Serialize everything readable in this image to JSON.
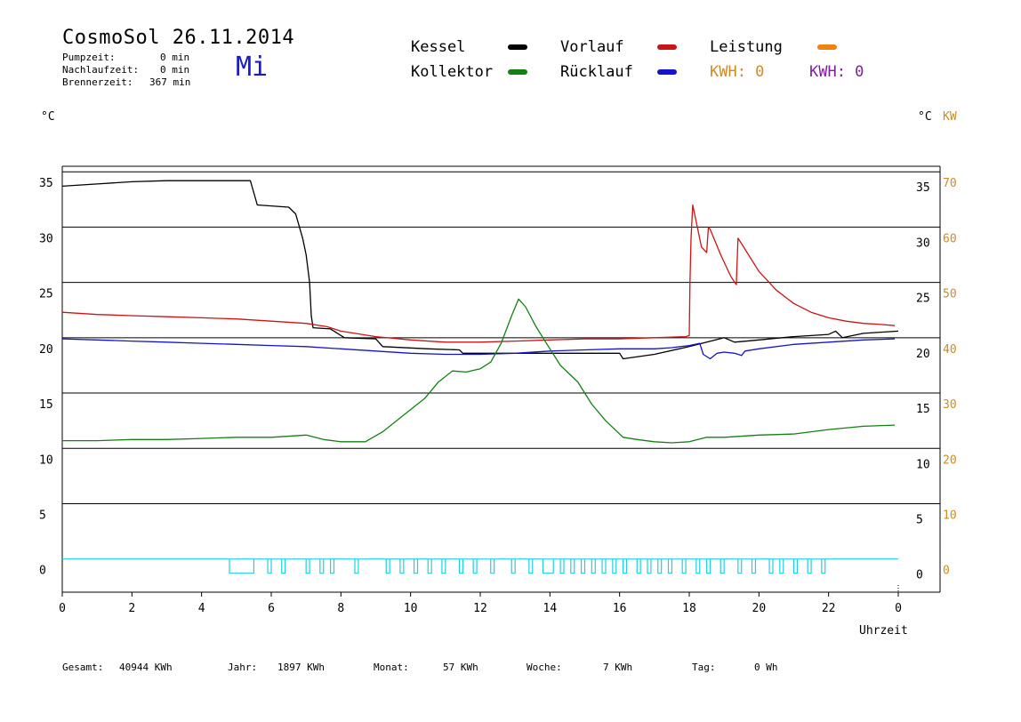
{
  "header": {
    "title": "CosmoSol 26.11.2014",
    "day": "Mi",
    "stats": [
      {
        "label": "Pumpzeit:",
        "value": "0 min"
      },
      {
        "label": "Nachlaufzeit:",
        "value": "0 min"
      },
      {
        "label": "Brennerzeit:",
        "value": "367 min"
      }
    ]
  },
  "legend": {
    "kessel": "Kessel",
    "kollektor": "Kollektor",
    "vorlauf": "Vorlauf",
    "ruecklauf": "Rücklauf",
    "leistung": "Leistung",
    "kwh_orange": "KWH: 0",
    "kwh_purple": "KWH: 0"
  },
  "colors": {
    "kessel": "#000000",
    "kollektor": "#138013",
    "vorlauf": "#cc1414",
    "ruecklauf": "#1414cc",
    "leistung": "#f0820f",
    "kwh_purple": "#8020a0",
    "pump": "#20d0e0",
    "kw_axis": "#d08a20"
  },
  "axes": {
    "left_unit": "°C",
    "right_unit": "°C",
    "kw_unit": "KW",
    "xlabel": "Uhrzeit"
  },
  "footer": [
    {
      "label": "Gesamt:",
      "value": "40944 KWh"
    },
    {
      "label": "Jahr:",
      "value": "1897 KWh"
    },
    {
      "label": "Monat:",
      "value": "57 KWh"
    },
    {
      "label": "Woche:",
      "value": "7 KWh"
    },
    {
      "label": "Tag:",
      "value": "0 Wh"
    }
  ],
  "chart_data": {
    "type": "line",
    "xlim": [
      0,
      24
    ],
    "ylim": [
      -3,
      35.5
    ],
    "x_ticks": [
      "0",
      "2",
      "4",
      "6",
      "8",
      "10",
      "12",
      "14",
      "16",
      "18",
      "20",
      "22",
      "0"
    ],
    "y_ticks": [
      0,
      5,
      10,
      15,
      20,
      25,
      30,
      35
    ],
    "kw_ticks": [
      0,
      10,
      20,
      30,
      40,
      50,
      60,
      70
    ],
    "series": [
      {
        "name": "Kessel",
        "key": "kessel",
        "points": [
          [
            0,
            33.7
          ],
          [
            1,
            33.9
          ],
          [
            2,
            34.1
          ],
          [
            3,
            34.2
          ],
          [
            4,
            34.2
          ],
          [
            5.4,
            34.2
          ],
          [
            5.6,
            32.0
          ],
          [
            6.5,
            31.8
          ],
          [
            6.7,
            31.2
          ],
          [
            6.9,
            29.0
          ],
          [
            7.0,
            27.5
          ],
          [
            7.1,
            25.0
          ],
          [
            7.15,
            22.0
          ],
          [
            7.2,
            20.9
          ],
          [
            7.7,
            20.8
          ],
          [
            8.1,
            20.0
          ],
          [
            9.0,
            19.9
          ],
          [
            9.2,
            19.2
          ],
          [
            10.5,
            19.0
          ],
          [
            11.4,
            18.9
          ],
          [
            11.5,
            18.6
          ],
          [
            13.5,
            18.6
          ],
          [
            14.8,
            18.6
          ],
          [
            16.0,
            18.6
          ],
          [
            16.1,
            18.1
          ],
          [
            17.0,
            18.5
          ],
          [
            18.0,
            19.2
          ],
          [
            19.0,
            20.0
          ],
          [
            19.3,
            19.6
          ],
          [
            20.0,
            19.8
          ],
          [
            21.0,
            20.1
          ],
          [
            22.0,
            20.3
          ],
          [
            22.2,
            20.6
          ],
          [
            22.4,
            20.0
          ],
          [
            23.0,
            20.4
          ],
          [
            24.0,
            20.6
          ]
        ]
      },
      {
        "name": "Vorlauf",
        "key": "vorlauf",
        "points": [
          [
            0,
            22.3
          ],
          [
            1,
            22.1
          ],
          [
            2,
            22.0
          ],
          [
            3,
            21.9
          ],
          [
            4,
            21.8
          ],
          [
            5,
            21.7
          ],
          [
            6,
            21.5
          ],
          [
            7,
            21.3
          ],
          [
            7.6,
            21.0
          ],
          [
            8,
            20.6
          ],
          [
            9,
            20.1
          ],
          [
            10,
            19.8
          ],
          [
            11,
            19.6
          ],
          [
            12,
            19.6
          ],
          [
            13,
            19.7
          ],
          [
            14,
            19.8
          ],
          [
            15,
            19.9
          ],
          [
            16,
            19.9
          ],
          [
            17,
            20.0
          ],
          [
            17.9,
            20.1
          ],
          [
            18.0,
            20.2
          ],
          [
            18.02,
            25.0
          ],
          [
            18.05,
            29.0
          ],
          [
            18.1,
            32.0
          ],
          [
            18.35,
            28.2
          ],
          [
            18.5,
            27.7
          ],
          [
            18.55,
            30.0
          ],
          [
            18.6,
            29.8
          ],
          [
            18.9,
            27.5
          ],
          [
            19.2,
            25.5
          ],
          [
            19.35,
            24.8
          ],
          [
            19.4,
            29.0
          ],
          [
            19.5,
            28.5
          ],
          [
            20.0,
            26.0
          ],
          [
            20.5,
            24.3
          ],
          [
            21.0,
            23.1
          ],
          [
            21.5,
            22.3
          ],
          [
            22.0,
            21.8
          ],
          [
            22.5,
            21.5
          ],
          [
            23,
            21.3
          ],
          [
            23.5,
            21.2
          ],
          [
            23.9,
            21.1
          ]
        ]
      },
      {
        "name": "Rücklauf",
        "key": "ruecklauf",
        "points": [
          [
            0,
            19.9
          ],
          [
            1,
            19.8
          ],
          [
            2,
            19.7
          ],
          [
            3,
            19.6
          ],
          [
            4,
            19.5
          ],
          [
            5,
            19.4
          ],
          [
            6,
            19.3
          ],
          [
            7,
            19.2
          ],
          [
            8,
            19.0
          ],
          [
            9,
            18.8
          ],
          [
            10,
            18.6
          ],
          [
            11,
            18.5
          ],
          [
            12,
            18.5
          ],
          [
            13,
            18.6
          ],
          [
            14,
            18.8
          ],
          [
            15,
            18.9
          ],
          [
            16,
            19.0
          ],
          [
            17,
            19.0
          ],
          [
            17.5,
            19.1
          ],
          [
            18.0,
            19.3
          ],
          [
            18.3,
            19.5
          ],
          [
            18.4,
            18.5
          ],
          [
            18.6,
            18.1
          ],
          [
            18.8,
            18.6
          ],
          [
            19.0,
            18.7
          ],
          [
            19.3,
            18.6
          ],
          [
            19.5,
            18.4
          ],
          [
            19.6,
            18.8
          ],
          [
            20.0,
            19.0
          ],
          [
            21.0,
            19.4
          ],
          [
            22.0,
            19.6
          ],
          [
            23.0,
            19.8
          ],
          [
            23.9,
            19.9
          ]
        ]
      },
      {
        "name": "Kollektor",
        "key": "kollektor",
        "points": [
          [
            0,
            10.7
          ],
          [
            1,
            10.7
          ],
          [
            2,
            10.8
          ],
          [
            3,
            10.8
          ],
          [
            4,
            10.9
          ],
          [
            5,
            11.0
          ],
          [
            6,
            11.0
          ],
          [
            7,
            11.2
          ],
          [
            7.5,
            10.8
          ],
          [
            8,
            10.6
          ],
          [
            8.7,
            10.6
          ],
          [
            9.2,
            11.5
          ],
          [
            9.8,
            13.0
          ],
          [
            10.4,
            14.5
          ],
          [
            10.8,
            16.0
          ],
          [
            11.2,
            17.0
          ],
          [
            11.6,
            16.9
          ],
          [
            12.0,
            17.2
          ],
          [
            12.3,
            17.8
          ],
          [
            12.6,
            19.5
          ],
          [
            12.9,
            22.0
          ],
          [
            13.1,
            23.5
          ],
          [
            13.3,
            22.8
          ],
          [
            13.6,
            21.0
          ],
          [
            14.0,
            19.0
          ],
          [
            14.3,
            17.5
          ],
          [
            14.8,
            16.0
          ],
          [
            15.2,
            14.0
          ],
          [
            15.6,
            12.5
          ],
          [
            16.1,
            11.0
          ],
          [
            16.5,
            10.8
          ],
          [
            17.0,
            10.6
          ],
          [
            17.5,
            10.5
          ],
          [
            18.0,
            10.6
          ],
          [
            18.5,
            11.0
          ],
          [
            19.0,
            11.0
          ],
          [
            20.0,
            11.2
          ],
          [
            21.0,
            11.3
          ],
          [
            22.0,
            11.7
          ],
          [
            23.0,
            12.0
          ],
          [
            23.9,
            12.1
          ]
        ]
      }
    ],
    "pump": {
      "name": "Pumpe",
      "key": "pump",
      "pulses": [
        [
          4.8,
          5.5
        ],
        [
          5.9,
          6.0
        ],
        [
          6.3,
          6.4
        ],
        [
          7.0,
          7.1
        ],
        [
          7.4,
          7.5
        ],
        [
          7.7,
          7.8
        ],
        [
          8.4,
          8.5
        ],
        [
          9.3,
          9.4
        ],
        [
          9.7,
          9.8
        ],
        [
          10.1,
          10.2
        ],
        [
          10.5,
          10.6
        ],
        [
          10.9,
          11.0
        ],
        [
          11.4,
          11.5
        ],
        [
          11.8,
          11.9
        ],
        [
          12.3,
          12.4
        ],
        [
          12.9,
          13.0
        ],
        [
          13.4,
          13.5
        ],
        [
          13.8,
          14.1
        ],
        [
          14.3,
          14.4
        ],
        [
          14.6,
          14.7
        ],
        [
          14.9,
          15.0
        ],
        [
          15.2,
          15.3
        ],
        [
          15.5,
          15.6
        ],
        [
          15.8,
          15.9
        ],
        [
          16.1,
          16.2
        ],
        [
          16.5,
          16.6
        ],
        [
          16.8,
          16.9
        ],
        [
          17.1,
          17.2
        ],
        [
          17.4,
          17.5
        ],
        [
          17.8,
          17.9
        ],
        [
          18.2,
          18.3
        ],
        [
          18.5,
          18.6
        ],
        [
          18.9,
          19.0
        ],
        [
          19.4,
          19.5
        ],
        [
          19.8,
          19.9
        ],
        [
          20.3,
          20.4
        ],
        [
          20.6,
          20.7
        ],
        [
          21.0,
          21.1
        ],
        [
          21.4,
          21.5
        ],
        [
          21.8,
          21.9
        ]
      ]
    }
  }
}
